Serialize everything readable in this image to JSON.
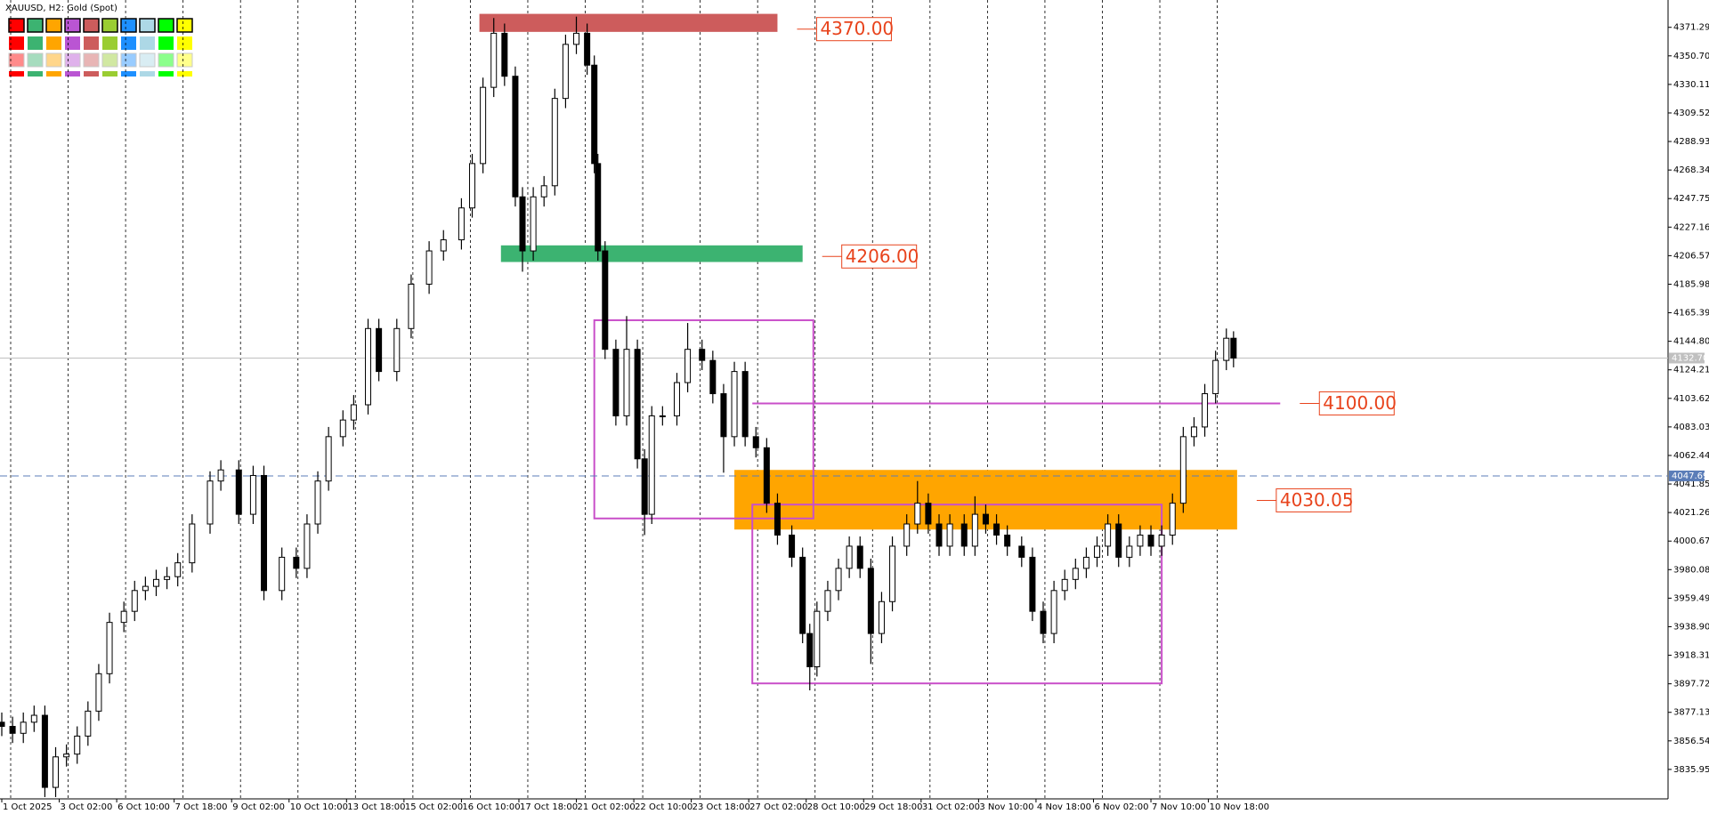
{
  "chart_data": {
    "type": "candlestick",
    "title": "XAUUSD, H2:  Gold (Spot)",
    "xlim": [
      0,
      464
    ],
    "ylim": [
      3814.7,
      4391.0
    ],
    "yticks": [
      4371.29,
      {
        "value": 4350.7,
        "label": "4350.70"
      },
      4330.11,
      4309.52,
      4288.93,
      4268.34,
      4247.75,
      4227.16,
      4206.57,
      4185.98,
      4165.39,
      {
        "value": 4144.8,
        "label": "4144.80"
      },
      4124.21,
      4103.62,
      4083.03,
      4062.44,
      4041.85,
      4021.26,
      4000.67,
      3980.08,
      3959.49,
      {
        "value": 3938.9,
        "label": "3938.90"
      },
      3918.31,
      3897.72,
      3877.13,
      3856.54,
      3835.95
    ],
    "xticks": [
      {
        "value": 0,
        "label": "1 Oct 2025"
      },
      {
        "value": 16,
        "label": "3 Oct 02:00"
      },
      {
        "value": 32,
        "label": "6 Oct 10:00"
      },
      {
        "value": 48,
        "label": "7 Oct 18:00"
      },
      {
        "value": 64,
        "label": "9 Oct 02:00"
      },
      {
        "value": 80,
        "label": "10 Oct 10:00"
      },
      {
        "value": 96,
        "label": "13 Oct 18:00"
      },
      {
        "value": 112,
        "label": "15 Oct 02:00"
      },
      {
        "value": 128,
        "label": "16 Oct 10:00"
      },
      {
        "value": 144,
        "label": "17 Oct 18:00"
      },
      {
        "value": 160,
        "label": "21 Oct 02:00"
      },
      {
        "value": 176,
        "label": "22 Oct 10:00"
      },
      {
        "value": 192,
        "label": "23 Oct 18:00"
      },
      {
        "value": 208,
        "label": "27 Oct 02:00"
      },
      {
        "value": 224,
        "label": "28 Oct 10:00"
      },
      {
        "value": 240,
        "label": "29 Oct 18:00"
      },
      {
        "value": 256,
        "label": "31 Oct 02:00"
      },
      {
        "value": 272,
        "label": "3 Nov 10:00"
      },
      {
        "value": 288,
        "label": "4 Nov 18:00"
      },
      {
        "value": 304,
        "label": "6 Nov 02:00"
      },
      {
        "value": 320,
        "label": "7 Nov 10:00"
      },
      {
        "value": 336,
        "label": "10 Nov 18:00"
      }
    ],
    "grid": true,
    "x": [
      0,
      3,
      6,
      9,
      12,
      15,
      18,
      21,
      24,
      27,
      30,
      34,
      37,
      40,
      43,
      46,
      49,
      53,
      58,
      61,
      66,
      70,
      73,
      78,
      82,
      85,
      88,
      91,
      95,
      98,
      102,
      105,
      110,
      114,
      119,
      123,
      128,
      131,
      134,
      137,
      140,
      143,
      145,
      148,
      151,
      154,
      157,
      160,
      163,
      165,
      166,
      168,
      171,
      174,
      177,
      179,
      181,
      184,
      188,
      191,
      195,
      198,
      201,
      204,
      207,
      210,
      213,
      216,
      220,
      223,
      225,
      227,
      230,
      233,
      236,
      239,
      242,
      245,
      248,
      252,
      255,
      258,
      261,
      264,
      268,
      271,
      274,
      277,
      280,
      284,
      287,
      290,
      293,
      296,
      299,
      302,
      305,
      308,
      311,
      314,
      317,
      320,
      323,
      326,
      329,
      332,
      335,
      338,
      341,
      343
    ],
    "open": [
      3870,
      3867,
      3862,
      3870,
      3875,
      3823,
      3845,
      3847,
      3860,
      3878,
      3905,
      3942,
      3950,
      3965,
      3968,
      3973,
      3975,
      3985,
      4013,
      4044,
      4052,
      4020,
      4048,
      3965,
      3989,
      3981,
      4013,
      4044,
      4076,
      4088,
      4099,
      4154,
      4123,
      4154,
      4186,
      4210,
      4218,
      4241,
      4273,
      4328,
      4367,
      4336,
      4249,
      4210,
      4249,
      4257,
      4320,
      4359,
      4367,
      4344,
      4273,
      4210,
      4139,
      4091,
      4139,
      4060,
      4020,
      4091,
      4091,
      4115,
      4139,
      4131,
      4107,
      4076,
      4123,
      4076,
      4068,
      4028,
      4005,
      3989,
      3934,
      3910,
      3950,
      3965,
      3981,
      3997,
      3981,
      3934,
      3957,
      3997,
      4013,
      4028,
      4013,
      3997,
      4013,
      3997,
      4020,
      4013,
      4005,
      3997,
      3989,
      3950,
      3934,
      3965,
      3973,
      3981,
      3989,
      3997,
      4013,
      3989,
      3997,
      4005,
      3997,
      4005,
      4028,
      4076,
      4083,
      4107,
      4131,
      4147
    ],
    "high": [
      3877,
      3874,
      3877,
      3882,
      3882,
      3852,
      3854,
      3867,
      3885,
      3912,
      3949,
      3957,
      3972,
      3975,
      3980,
      3982,
      3992,
      4020,
      4051,
      4059,
      4059,
      4055,
      4055,
      3996,
      3996,
      4020,
      4051,
      4083,
      4095,
      4106,
      4161,
      4161,
      4161,
      4193,
      4217,
      4225,
      4248,
      4280,
      4335,
      4378,
      4374,
      4343,
      4256,
      4256,
      4264,
      4327,
      4366,
      4379,
      4374,
      4351,
      4280,
      4217,
      4146,
      4163,
      4146,
      4067,
      4098,
      4098,
      4122,
      4158,
      4146,
      4138,
      4114,
      4130,
      4130,
      4083,
      4075,
      4035,
      4012,
      3996,
      3941,
      3957,
      3972,
      3988,
      4004,
      4004,
      3988,
      3964,
      4004,
      4020,
      4044,
      4035,
      4020,
      4020,
      4020,
      4033,
      4027,
      4020,
      4012,
      4004,
      3996,
      3957,
      3972,
      3980,
      3988,
      3996,
      4004,
      4020,
      4020,
      4004,
      4012,
      4012,
      4012,
      4035,
      4083,
      4090,
      4114,
      4138,
      4154,
      4152
    ],
    "low": [
      3860,
      3855,
      3855,
      3863,
      3816,
      3816,
      3838,
      3840,
      3853,
      3871,
      3898,
      3935,
      3943,
      3958,
      3961,
      3966,
      3968,
      3978,
      4006,
      4037,
      4013,
      4013,
      3958,
      3958,
      3974,
      3974,
      4006,
      4037,
      4069,
      4081,
      4092,
      4116,
      4116,
      4147,
      4179,
      4203,
      4211,
      4234,
      4266,
      4321,
      4329,
      4242,
      4195,
      4203,
      4242,
      4250,
      4313,
      4352,
      4337,
      4266,
      4203,
      4132,
      4084,
      4084,
      4053,
      4005,
      4013,
      4084,
      4084,
      4108,
      4124,
      4100,
      4050,
      4069,
      4069,
      4061,
      4021,
      3998,
      3982,
      3927,
      3893,
      3903,
      3943,
      3958,
      3974,
      3974,
      3912,
      3927,
      3950,
      3990,
      4006,
      4006,
      3990,
      3990,
      3990,
      3990,
      4006,
      3998,
      3990,
      3982,
      3943,
      3927,
      3927,
      3958,
      3966,
      3974,
      3982,
      3990,
      3982,
      3982,
      3990,
      3990,
      3990,
      3998,
      4021,
      4069,
      4076,
      4100,
      4124,
      4126
    ],
    "close": [
      3867,
      3862,
      3870,
      3875,
      3823,
      3845,
      3847,
      3860,
      3878,
      3905,
      3942,
      3950,
      3965,
      3968,
      3973,
      3975,
      3985,
      4013,
      4044,
      4052,
      4020,
      4048,
      3965,
      3989,
      3981,
      4013,
      4044,
      4076,
      4088,
      4099,
      4154,
      4123,
      4154,
      4186,
      4210,
      4218,
      4241,
      4273,
      4328,
      4367,
      4336,
      4249,
      4210,
      4249,
      4257,
      4320,
      4359,
      4367,
      4344,
      4273,
      4210,
      4139,
      4091,
      4139,
      4060,
      4020,
      4091,
      4091,
      4115,
      4139,
      4131,
      4107,
      4076,
      4123,
      4076,
      4068,
      4028,
      4005,
      3989,
      3934,
      3910,
      3950,
      3965,
      3981,
      3997,
      3981,
      3934,
      3957,
      3997,
      4013,
      4028,
      4013,
      3997,
      4013,
      3997,
      4020,
      4013,
      4005,
      3997,
      3989,
      3950,
      3934,
      3965,
      3973,
      3981,
      3989,
      3997,
      4013,
      3989,
      3997,
      4005,
      3997,
      4005,
      4028,
      4076,
      4083,
      4107,
      4131,
      4147,
      4132.7
    ],
    "price_lines": [
      {
        "value": 4132.7,
        "label": "4132.70",
        "color": "#c0c0c0",
        "dashed": false
      },
      {
        "value": 4047.69,
        "label": "4047.69",
        "color": "#5b7db8",
        "dashed": true
      }
    ],
    "zones": [
      {
        "x": [
          133,
          216
        ],
        "y": [
          4368,
          4381
        ],
        "color": "#cd5c5c",
        "fill": true,
        "level": 4370,
        "label": "4370.00"
      },
      {
        "x": [
          139,
          223
        ],
        "y": [
          4202,
          4214
        ],
        "color": "#3cb371",
        "fill": true,
        "level": 4206,
        "label": "4206.00"
      },
      {
        "x": [
          204,
          344
        ],
        "y": [
          4009,
          4052
        ],
        "color": "#ffa500",
        "fill": true,
        "level": 4030.05,
        "label": "4030.05"
      },
      {
        "x": [
          165,
          226
        ],
        "y": [
          4017,
          4160
        ],
        "color": "#c94fc9",
        "fill": false
      },
      {
        "x": [
          209,
          323
        ],
        "y": [
          3898,
          4027
        ],
        "color": "#c94fc9",
        "fill": false
      }
    ],
    "hlines": [
      {
        "x": [
          209,
          356
        ],
        "level": 4100,
        "color": "#c94fc9",
        "label": "4100.00"
      }
    ]
  }
}
